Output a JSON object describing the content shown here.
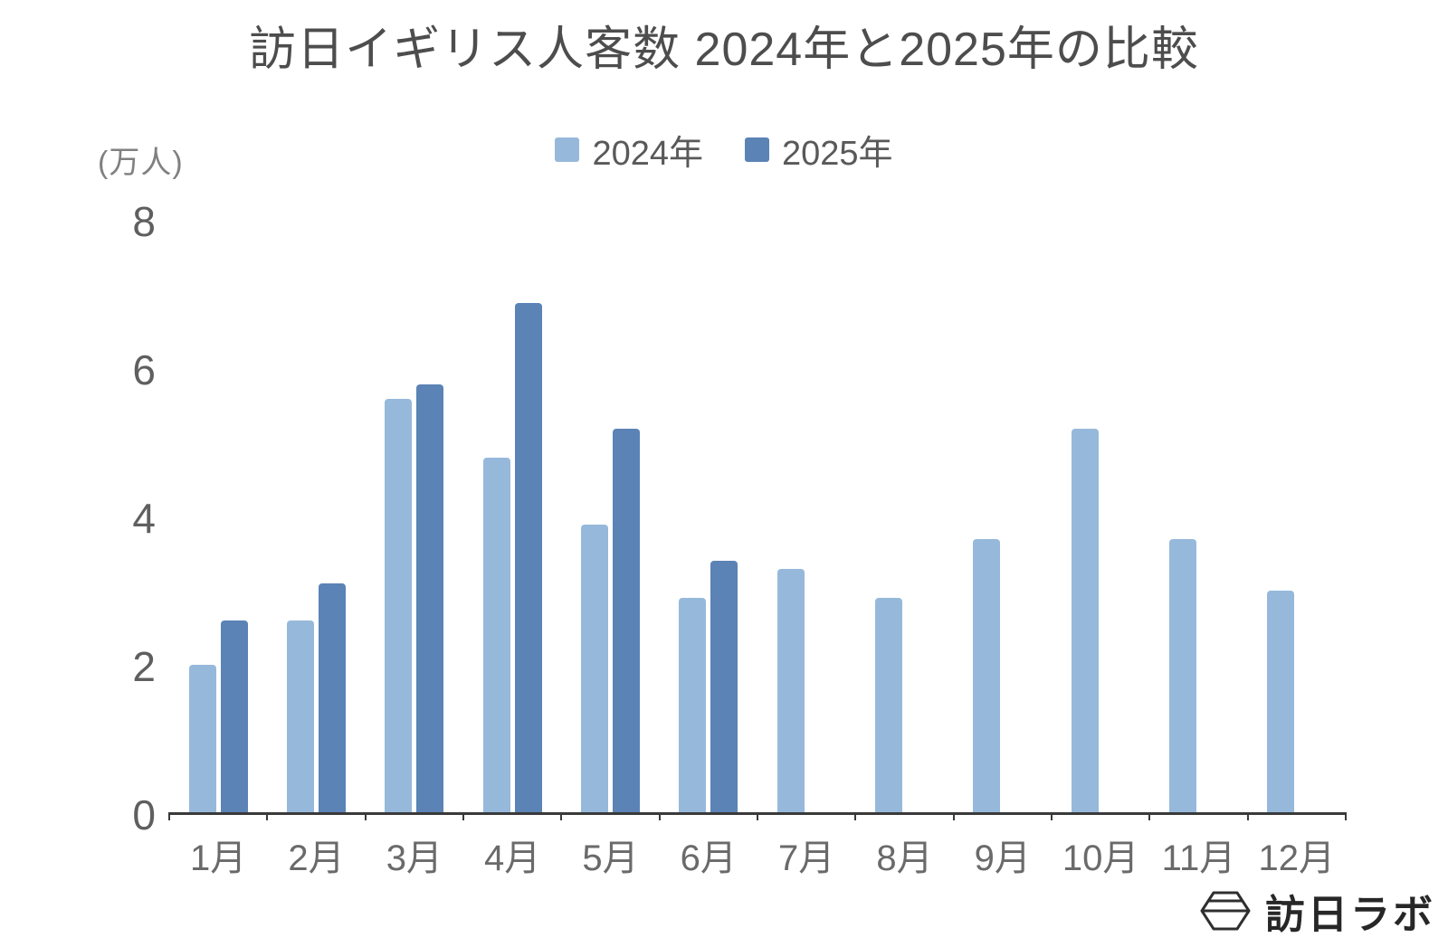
{
  "chart_data": {
    "type": "bar",
    "title": "訪日イギリス人客数 2024年と2025年の比較",
    "unit_label": "(万人)",
    "categories": [
      "1月",
      "2月",
      "3月",
      "4月",
      "5月",
      "6月",
      "7月",
      "8月",
      "9月",
      "10月",
      "11月",
      "12月"
    ],
    "series": [
      {
        "name": "2024年",
        "color": "#96b9db",
        "values": [
          2.0,
          2.6,
          5.6,
          4.8,
          3.9,
          2.9,
          3.3,
          2.9,
          3.7,
          5.2,
          3.7,
          3.0
        ]
      },
      {
        "name": "2025年",
        "color": "#5b83b6",
        "values": [
          2.6,
          3.1,
          5.8,
          6.9,
          5.2,
          3.4,
          null,
          null,
          null,
          null,
          null,
          null
        ]
      }
    ],
    "ylim": [
      0,
      8
    ],
    "yticks": [
      0,
      2,
      4,
      6,
      8
    ],
    "legend_position": "top",
    "grid": false,
    "axis_color": "#3a3a3a"
  },
  "logo": {
    "text": "訪日ラボ"
  }
}
